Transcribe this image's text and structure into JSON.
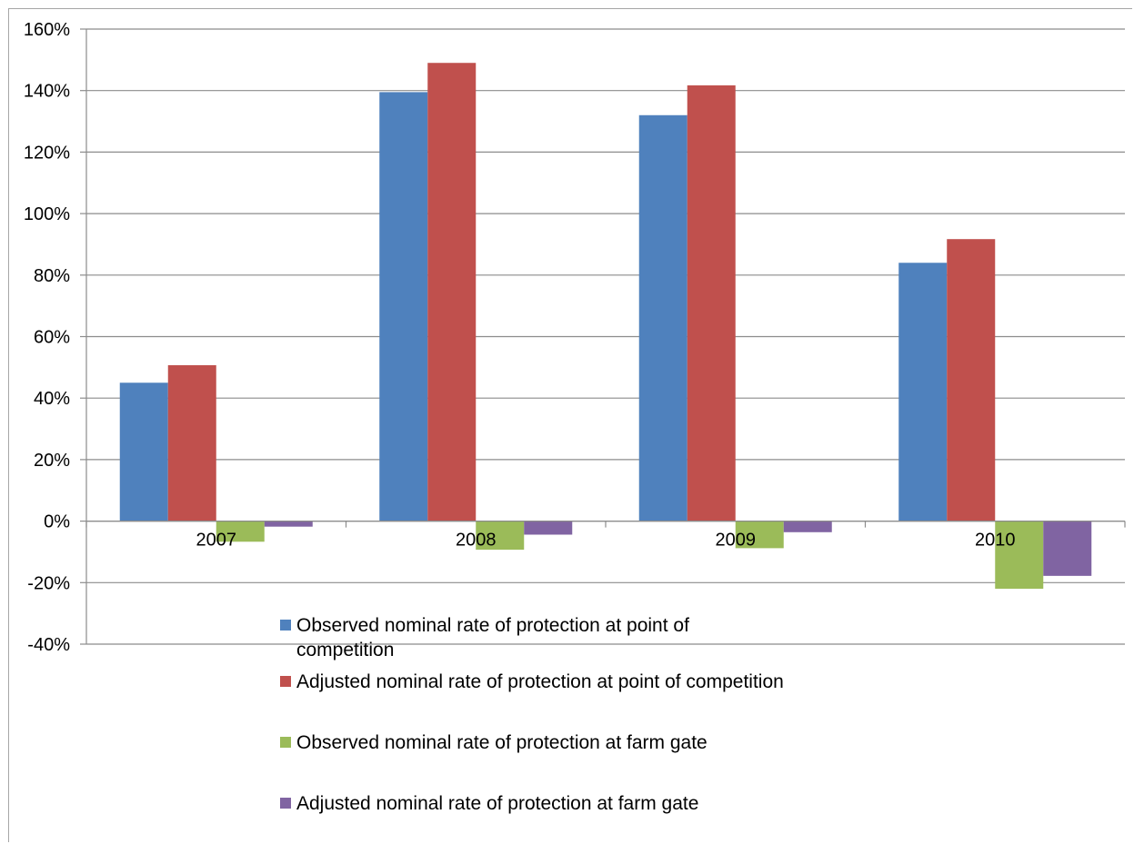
{
  "chart_data": {
    "type": "bar",
    "title": "",
    "xlabel": "",
    "ylabel": "",
    "categories": [
      "2007",
      "2008",
      "2009",
      "2010"
    ],
    "ylim": [
      -40,
      160
    ],
    "yticks": [
      -40,
      -20,
      0,
      20,
      40,
      60,
      80,
      100,
      120,
      140,
      160
    ],
    "ytick_format": "percent",
    "grid": true,
    "legend_position": "bottom",
    "series": [
      {
        "name": "Observed nominal rate of protection at point of competition",
        "color": "#4f81bd",
        "values": [
          45,
          139.5,
          132,
          84
        ]
      },
      {
        "name": "Adjusted nominal rate of protection at point of competition",
        "color": "#c0504d",
        "values": [
          50.7,
          149,
          141.7,
          91.7
        ]
      },
      {
        "name": "Observed nominal rate of protection at farm gate",
        "color": "#9bbb59",
        "values": [
          -6.7,
          -9.3,
          -8.8,
          -22
        ]
      },
      {
        "name": "Adjusted nominal rate of protection at farm gate",
        "color": "#8064a2",
        "values": [
          -1.8,
          -4.4,
          -3.6,
          -17.8
        ]
      }
    ]
  }
}
